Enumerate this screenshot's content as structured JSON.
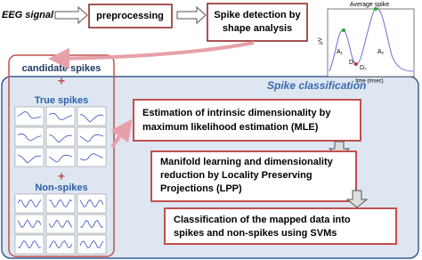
{
  "pipeline": {
    "input": "EEG signal",
    "steps": [
      {
        "lines": [
          "preprocessing"
        ]
      },
      {
        "lines": [
          "Spike detection by",
          "shape analysis"
        ]
      }
    ]
  },
  "inset": {
    "title": "Average spike",
    "x_label": "time (msec)",
    "y_label": "μV",
    "regions": [
      "A₁",
      "A₂",
      "D₁",
      "D₂"
    ]
  },
  "candidates": {
    "title": "candidate spikes",
    "plus": "+",
    "true_spikes": "True spikes",
    "non_spikes": "Non-spikes"
  },
  "classification": {
    "title": "Spike classification",
    "steps": [
      {
        "lines": [
          "Estimation of intrinsic dimensionality by",
          "maximum likelihood estimation (MLE)"
        ]
      },
      {
        "lines": [
          "Manifold learning and dimensionality",
          "reduction by Locality Preserving",
          "Projections (LPP)"
        ]
      },
      {
        "lines": [
          "Classification of the mapped data into",
          "spikes and non-spikes using SVMs"
        ]
      }
    ]
  }
}
